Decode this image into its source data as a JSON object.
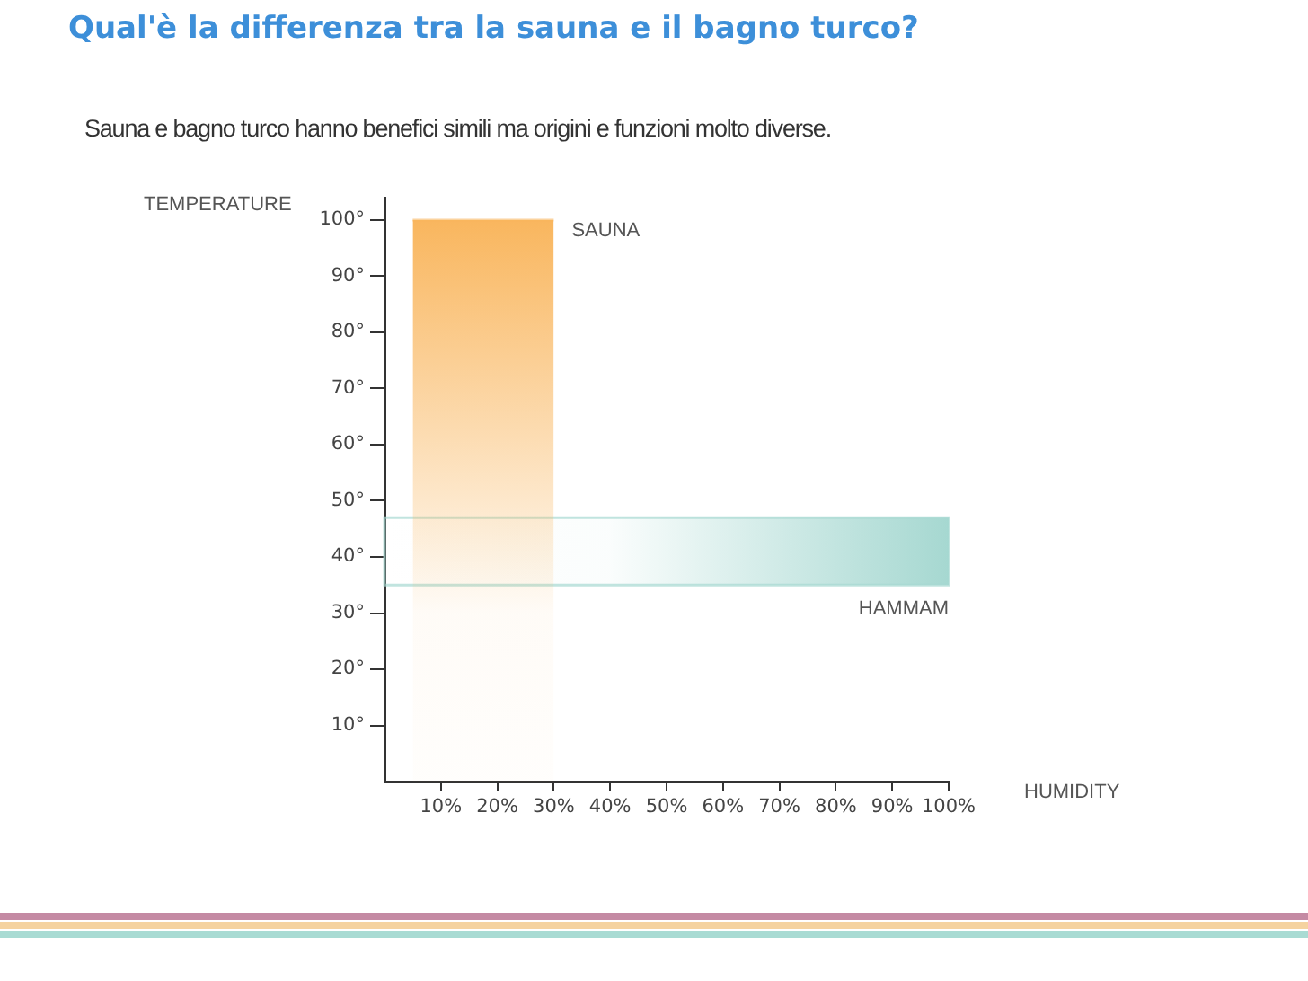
{
  "chart_data": {
    "type": "area",
    "title": "Qual'è la differenza tra la sauna e il bagno turco?",
    "subtitle": "Sauna e bagno turco hanno benefici simili ma origini e funzioni molto diverse.",
    "xlabel": "HUMIDITY",
    "ylabel": "TEMPERATURE",
    "xlim": [
      0,
      100
    ],
    "ylim": [
      0,
      104
    ],
    "xticks": [
      {
        "value": 10,
        "label": "10%"
      },
      {
        "value": 20,
        "label": "20%"
      },
      {
        "value": 30,
        "label": "30%"
      },
      {
        "value": 40,
        "label": "40%"
      },
      {
        "value": 50,
        "label": "50%"
      },
      {
        "value": 60,
        "label": "60%"
      },
      {
        "value": 70,
        "label": "70%"
      },
      {
        "value": 80,
        "label": "80%"
      },
      {
        "value": 90,
        "label": "90%"
      },
      {
        "value": 100,
        "label": "100%"
      }
    ],
    "yticks": [
      {
        "value": 10,
        "label": "10°"
      },
      {
        "value": 20,
        "label": "20°"
      },
      {
        "value": 30,
        "label": "30°"
      },
      {
        "value": 40,
        "label": "40°"
      },
      {
        "value": 50,
        "label": "50°"
      },
      {
        "value": 60,
        "label": "60°"
      },
      {
        "value": 70,
        "label": "70°"
      },
      {
        "value": 80,
        "label": "80°"
      },
      {
        "value": 90,
        "label": "90°"
      },
      {
        "value": 100,
        "label": "100°"
      }
    ],
    "series": [
      {
        "name": "SAUNA",
        "color": "#f9b65e",
        "x": [
          5,
          30
        ],
        "values": [
          100,
          100
        ]
      }
    ],
    "bands": [
      {
        "axis": "y",
        "from": 35,
        "to": 47,
        "label": "HAMMAM",
        "color": "#a6d8d1"
      }
    ],
    "legend": false,
    "marker": "none"
  }
}
